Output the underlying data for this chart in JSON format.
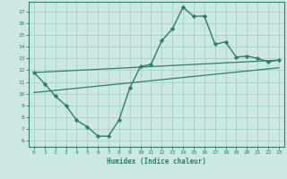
{
  "xlabel": "Humidex (Indice chaleur)",
  "bg_color": "#cce8e5",
  "line_color": "#2e7d6e",
  "grid_color": "#a8cfc9",
  "xlim": [
    -0.5,
    23.5
  ],
  "ylim": [
    5.5,
    17.8
  ],
  "xticks": [
    0,
    1,
    2,
    3,
    4,
    5,
    6,
    7,
    8,
    9,
    10,
    11,
    12,
    13,
    14,
    15,
    16,
    17,
    18,
    19,
    20,
    21,
    22,
    23
  ],
  "yticks": [
    6,
    7,
    8,
    9,
    10,
    11,
    12,
    13,
    14,
    15,
    16,
    17
  ],
  "main_x": [
    0,
    1,
    2,
    3,
    4,
    5,
    6,
    7,
    8,
    9,
    10,
    11,
    12,
    13,
    14,
    15,
    16,
    17,
    18,
    19,
    20,
    21,
    22,
    23
  ],
  "main_y": [
    11.8,
    10.85,
    9.8,
    9.0,
    7.75,
    7.2,
    6.4,
    6.4,
    7.8,
    10.5,
    12.3,
    12.5,
    14.5,
    15.5,
    17.35,
    16.55,
    16.6,
    14.2,
    14.4,
    13.1,
    13.2,
    13.0,
    12.7,
    12.85
  ],
  "upper_line_x": [
    0,
    23
  ],
  "upper_line_y": [
    11.8,
    12.85
  ],
  "lower_line_x": [
    0,
    23
  ],
  "lower_line_y": [
    10.1,
    12.2
  ]
}
